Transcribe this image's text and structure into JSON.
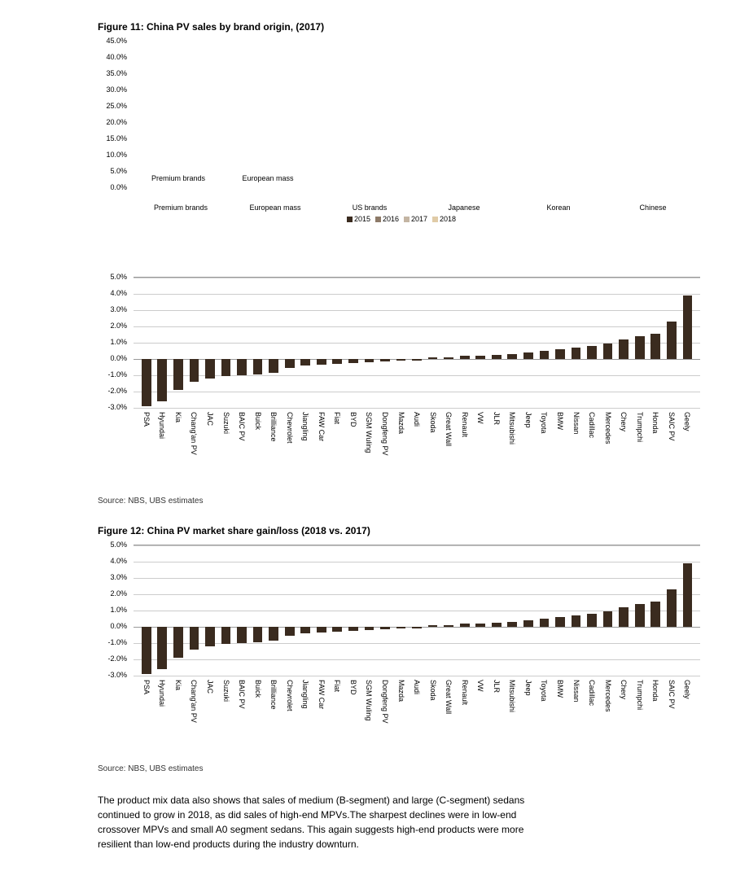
{
  "fig11": {
    "title": "Figure 11: China PV sales by brand origin, (2017)",
    "type": "grouped-bar",
    "ylabel_format": "percent",
    "ylim": [
      0,
      45
    ],
    "ytick_step": 5,
    "yticks": [
      "0.0%",
      "5.0%",
      "10.0%",
      "15.0%",
      "20.0%",
      "25.0%",
      "30.0%",
      "35.0%",
      "40.0%",
      "45.0%"
    ],
    "categories": [
      "Premium brands",
      "European mass",
      "US brands",
      "Japanese",
      "Korean",
      "Chinese"
    ],
    "inner_row_a": [
      "Premium brands",
      "European mass"
    ],
    "inner_row_b": [
      "Premium brands",
      "European mass",
      "US brands",
      "Japanese",
      "Korean",
      "Chinese"
    ],
    "series": [
      {
        "name": "2015",
        "color": "#3a2b1f"
      },
      {
        "name": "2016",
        "color": "#8d7a68"
      },
      {
        "name": "2017",
        "color": "#c4b5a3"
      },
      {
        "name": "2018",
        "color": "#e0cba7"
      }
    ],
    "legend_text": "■ 2015 ■ 2016 ■ 2017 ■ 2018",
    "note": "bars not visible in source image; only axes, category labels and legend render",
    "background_color": "#ffffff"
  },
  "fig12": {
    "title": "Figure 12: China PV market share gain/loss (2018 vs. 2017)",
    "type": "diverging-bar",
    "ylim": [
      -3,
      5
    ],
    "yticks": [
      -3,
      -2,
      -1,
      0,
      1,
      2,
      3,
      4,
      5
    ],
    "ytick_labels": [
      "-3.0%",
      "-2.0%",
      "-1.0%",
      "0.0%",
      "1.0%",
      "2.0%",
      "3.0%",
      "4.0%",
      "5.0%"
    ],
    "bar_color": "#3a2b1f",
    "grid_color": "#cccccc",
    "axis_color": "#999999",
    "background_color": "#ffffff",
    "label_fontsize": 9,
    "brands": [
      {
        "name": "PSA",
        "value": -2.9
      },
      {
        "name": "Hyundai",
        "value": -2.6
      },
      {
        "name": "Kia",
        "value": -1.9
      },
      {
        "name": "Chang'an PV",
        "value": -1.4
      },
      {
        "name": "JAC",
        "value": -1.2
      },
      {
        "name": "Suzuki",
        "value": -1.05
      },
      {
        "name": "BAIC PV",
        "value": -1.0
      },
      {
        "name": "Buick",
        "value": -0.95
      },
      {
        "name": "Brilliance",
        "value": -0.85
      },
      {
        "name": "Chevrolet",
        "value": -0.55
      },
      {
        "name": "Jiangling",
        "value": -0.4
      },
      {
        "name": "FAW Car",
        "value": -0.35
      },
      {
        "name": "Fiat",
        "value": -0.3
      },
      {
        "name": "BYD",
        "value": -0.25
      },
      {
        "name": "SGM Wuling",
        "value": -0.2
      },
      {
        "name": "Dongfeng PV",
        "value": -0.15
      },
      {
        "name": "Mazda",
        "value": -0.1
      },
      {
        "name": "Audi",
        "value": -0.1
      },
      {
        "name": "Skoda",
        "value": 0.08
      },
      {
        "name": "Great Wall",
        "value": 0.12
      },
      {
        "name": "Renault",
        "value": 0.18
      },
      {
        "name": "VW",
        "value": 0.22
      },
      {
        "name": "JLR",
        "value": 0.25
      },
      {
        "name": "Mitsubishi",
        "value": 0.3
      },
      {
        "name": "Jeep",
        "value": 0.4
      },
      {
        "name": "Toyota",
        "value": 0.5
      },
      {
        "name": "BMW",
        "value": 0.6
      },
      {
        "name": "Nissan",
        "value": 0.7
      },
      {
        "name": "Cadillac",
        "value": 0.8
      },
      {
        "name": "Mercedes",
        "value": 0.95
      },
      {
        "name": "Chery",
        "value": 1.2
      },
      {
        "name": "Trumpchi",
        "value": 1.4
      },
      {
        "name": "Honda",
        "value": 1.55
      },
      {
        "name": "SAIC PV",
        "value": 2.3
      },
      {
        "name": "Geely",
        "value": 3.9
      }
    ],
    "source": "Source: NBS, UBS estimates"
  },
  "body_text": "The product mix data also shows that sales of medium (B-segment) and large (C-segment) sedans continued to grow in 2018, as did sales of high-end MPVs.The sharpest declines were in low-end crossover MPVs and small A0 segment sedans. This again suggests high-end products were more resilient than low-end products during the industry downturn."
}
